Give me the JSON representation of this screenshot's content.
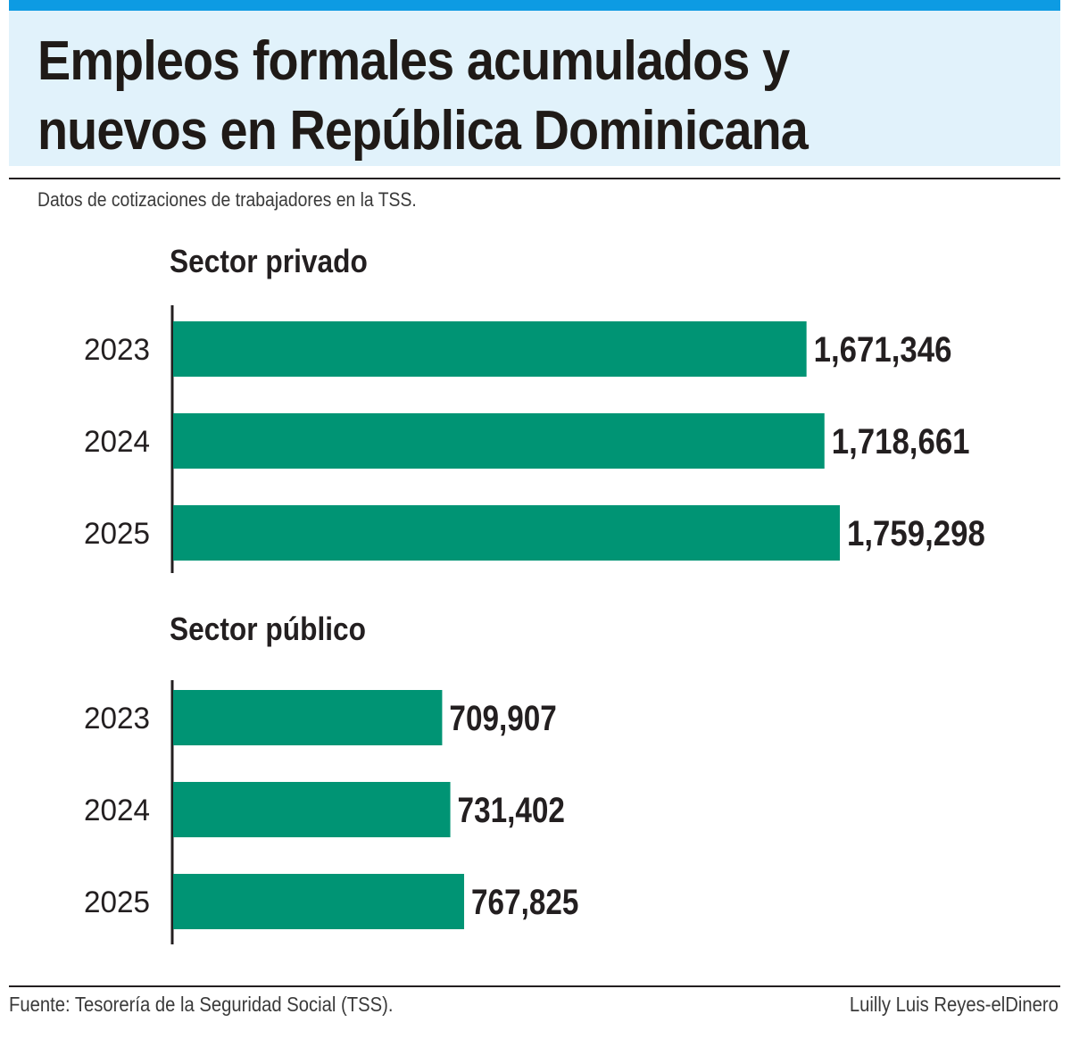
{
  "chart_data": {
    "type": "bar",
    "orientation": "horizontal",
    "title": "Empleos formales acumulados y nuevos en República Dominicana",
    "subtitle": "Datos de cotizaciones de trabajadores en la TSS.",
    "bar_color": "#009474",
    "panels": [
      {
        "name": "Sector privado",
        "categories": [
          "2023",
          "2024",
          "2025"
        ],
        "values": [
          1671346,
          1718661,
          1759298
        ],
        "labels": [
          "1,671,346",
          "1,718,661",
          "1,759,298"
        ]
      },
      {
        "name": "Sector público",
        "categories": [
          "2023",
          "2024",
          "2025"
        ],
        "values": [
          709907,
          731402,
          767825
        ],
        "labels": [
          "709,907",
          "731,402",
          "767,825"
        ]
      }
    ]
  },
  "footer": {
    "source": "Fuente: Tesorería de la Seguridad Social (TSS).",
    "credit": "Luilly Luis Reyes-elDinero"
  },
  "colors": {
    "accent": "#0d9be3",
    "title_bg": "#e1f2fb",
    "bar": "#009474",
    "text": "#231f20"
  }
}
